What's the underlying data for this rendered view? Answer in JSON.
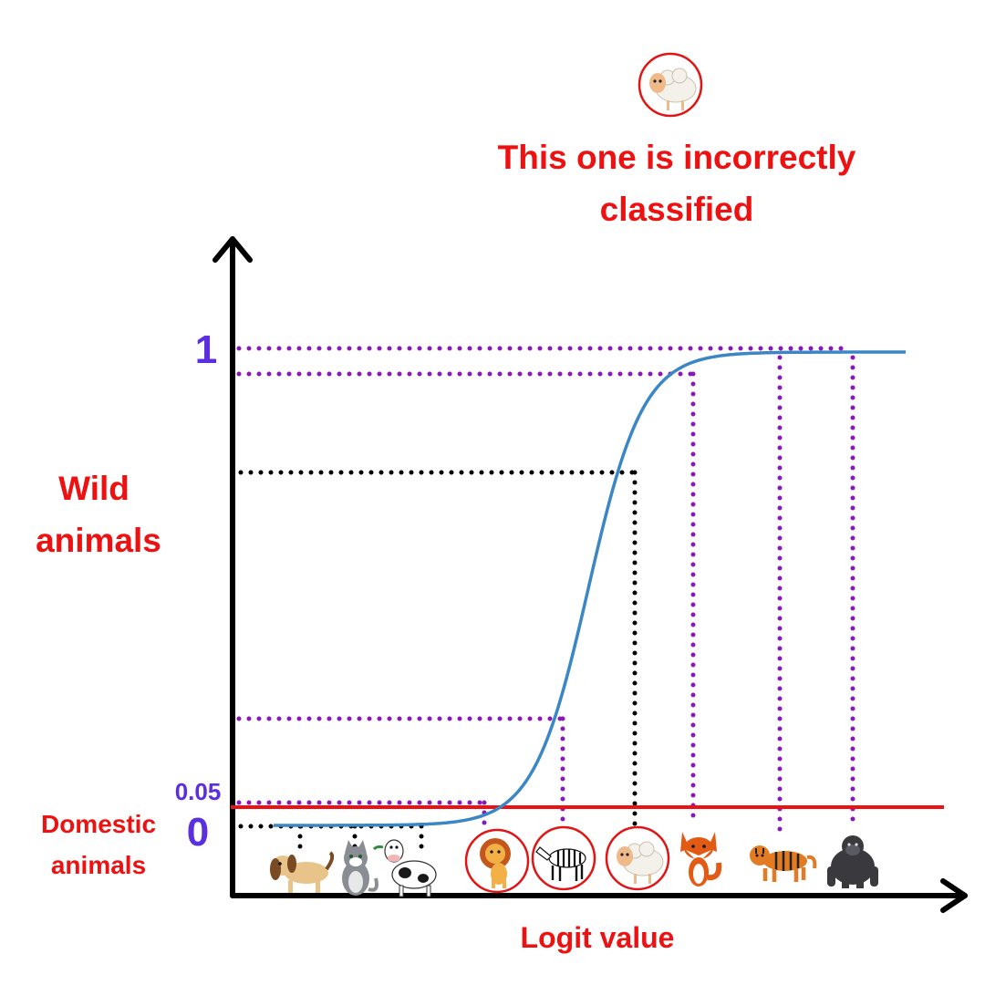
{
  "diagram": {
    "callout": {
      "line1": "This one is incorrectly",
      "line2": "classified",
      "animal": "sheep-icon"
    },
    "y_axis": {
      "top_tick": "1",
      "threshold_tick": "0.05",
      "bottom_tick": "0",
      "upper_label_line1": "Wild",
      "upper_label_line2": "animals",
      "lower_label_line1": "Domestic",
      "lower_label_line2": "animals"
    },
    "x_axis": {
      "label": "Logit value"
    },
    "domestic_animals": [
      "dog-icon",
      "cat-icon",
      "cow-icon"
    ],
    "wild_animals": [
      "lion-icon",
      "zebra-icon",
      "sheep-icon",
      "fox-icon",
      "tiger-icon",
      "gorilla-icon"
    ],
    "misclassified_animal": "sheep-icon",
    "colors": {
      "curve": "#3b87c5",
      "threshold": "#ee1111",
      "axis": "#000000",
      "tick_labels": "#5b2fe0",
      "class_labels": "#ee1111",
      "wild_guides": "#8a17b8",
      "domestic_guides": "#000000"
    }
  }
}
